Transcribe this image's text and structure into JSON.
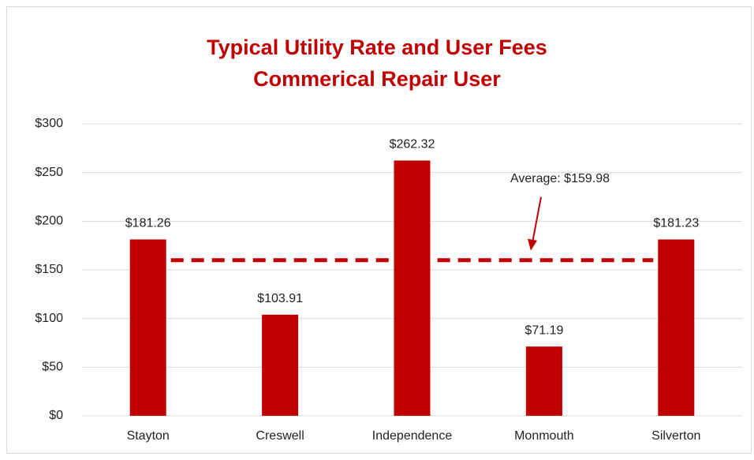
{
  "chart_data": {
    "type": "bar",
    "title": "Typical Utility Rate and User Fees",
    "subtitle": "Commerical Repair User",
    "categories": [
      "Stayton",
      "Creswell",
      "Independence",
      "Monmouth",
      "Silverton"
    ],
    "values": [
      181.26,
      103.91,
      262.32,
      71.19,
      181.23
    ],
    "value_labels": [
      "$181.26",
      "$103.91",
      "$262.32",
      "$71.19",
      "$181.23"
    ],
    "color": "#c00000",
    "ylim": [
      0,
      300
    ],
    "yticks": [
      {
        "value": 0,
        "label": "$0"
      },
      {
        "value": 50,
        "label": "$50"
      },
      {
        "value": 100,
        "label": "$100"
      },
      {
        "value": 150,
        "label": "$150"
      },
      {
        "value": 200,
        "label": "$200"
      },
      {
        "value": 250,
        "label": "$250"
      },
      {
        "value": 300,
        "label": "$300"
      }
    ],
    "grid": true,
    "average": {
      "value": 159.98,
      "label": "Average: $159.98"
    }
  }
}
